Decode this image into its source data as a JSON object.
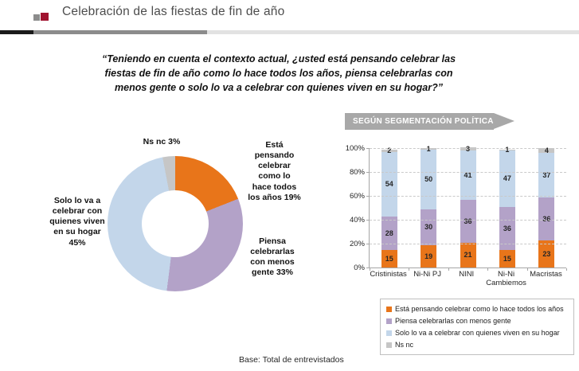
{
  "header": {
    "title": "Celebración de las fiestas de fin de año",
    "bullet_icon_colors": {
      "gray": "#8c8c8c",
      "red": "#a0132f"
    }
  },
  "question": {
    "line1": "“Teniendo en cuenta el contexto actual, ¿usted está pensando celebrar las",
    "line2": "fiestas de fin de año como lo hace todos los años, piensa celebrarlas con",
    "line3": "menos gente o solo lo va a celebrar con quienes viven en su hogar?”"
  },
  "banner": {
    "label": "SEGÚN SEGMENTACIÓN POLÍTICA",
    "bg_color": "#a8a8a8"
  },
  "donut_labels": {
    "top": "Ns nc 3%",
    "right_top": "Está pensando celebrar como lo hace todos los años 19%",
    "right_bottom": "Piensa celebrarlas con menos gente 33%",
    "left": "Solo lo va a celebrar con quienes viven en su hogar 45%"
  },
  "chart_data": [
    {
      "type": "pie",
      "subtype": "donut",
      "start_angle_deg": 0,
      "direction": "clockwise",
      "slices": [
        {
          "label": "Está pensando celebrar como lo hace todos los años",
          "value": 19,
          "color": "#e8751a"
        },
        {
          "label": "Piensa celebrarlas con menos gente",
          "value": 33,
          "color": "#b3a2c8"
        },
        {
          "label": "Solo lo va a celebrar con quienes viven en su hogar",
          "value": 45,
          "color": "#c3d6ea"
        },
        {
          "label": "Ns nc",
          "value": 3,
          "color": "#c6c6c6"
        }
      ]
    },
    {
      "type": "bar",
      "subtype": "stacked-100",
      "categories": [
        "Cristinistas",
        "Ni-Ni PJ",
        "NINI",
        "Ni-Ni Cambiemos",
        "Macristas"
      ],
      "series": [
        {
          "name": "Está pensando celebrar como lo hace todos los años",
          "color": "#e8751a",
          "values": [
            15,
            19,
            21,
            15,
            23
          ]
        },
        {
          "name": "Piensa celebrarlas con menos gente",
          "color": "#b3a2c8",
          "values": [
            28,
            30,
            36,
            36,
            36
          ]
        },
        {
          "name": "Solo lo va a celebrar con quienes viven en su hogar",
          "color": "#c3d6ea",
          "values": [
            54,
            50,
            41,
            47,
            37
          ]
        },
        {
          "name": "Ns nc",
          "color": "#c6c6c6",
          "values": [
            2,
            1,
            3,
            1,
            4
          ]
        }
      ],
      "ylim": [
        0,
        100
      ],
      "yticks": [
        "0%",
        "20%",
        "40%",
        "60%",
        "80%",
        "100%"
      ],
      "grid": "dashed-horizontal",
      "legend_position": "bottom-boxed"
    }
  ],
  "legend": {
    "items": [
      {
        "label": "Está pensando celebrar como lo hace todos los años",
        "color": "#e8751a"
      },
      {
        "label": "Piensa celebrarlas con menos gente",
        "color": "#b3a2c8"
      },
      {
        "label": "Solo lo va a celebrar con quienes viven en su hogar",
        "color": "#c3d6ea"
      },
      {
        "label": "Ns nc",
        "color": "#c6c6c6"
      }
    ]
  },
  "base_note": "Base: Total de entrevistados"
}
